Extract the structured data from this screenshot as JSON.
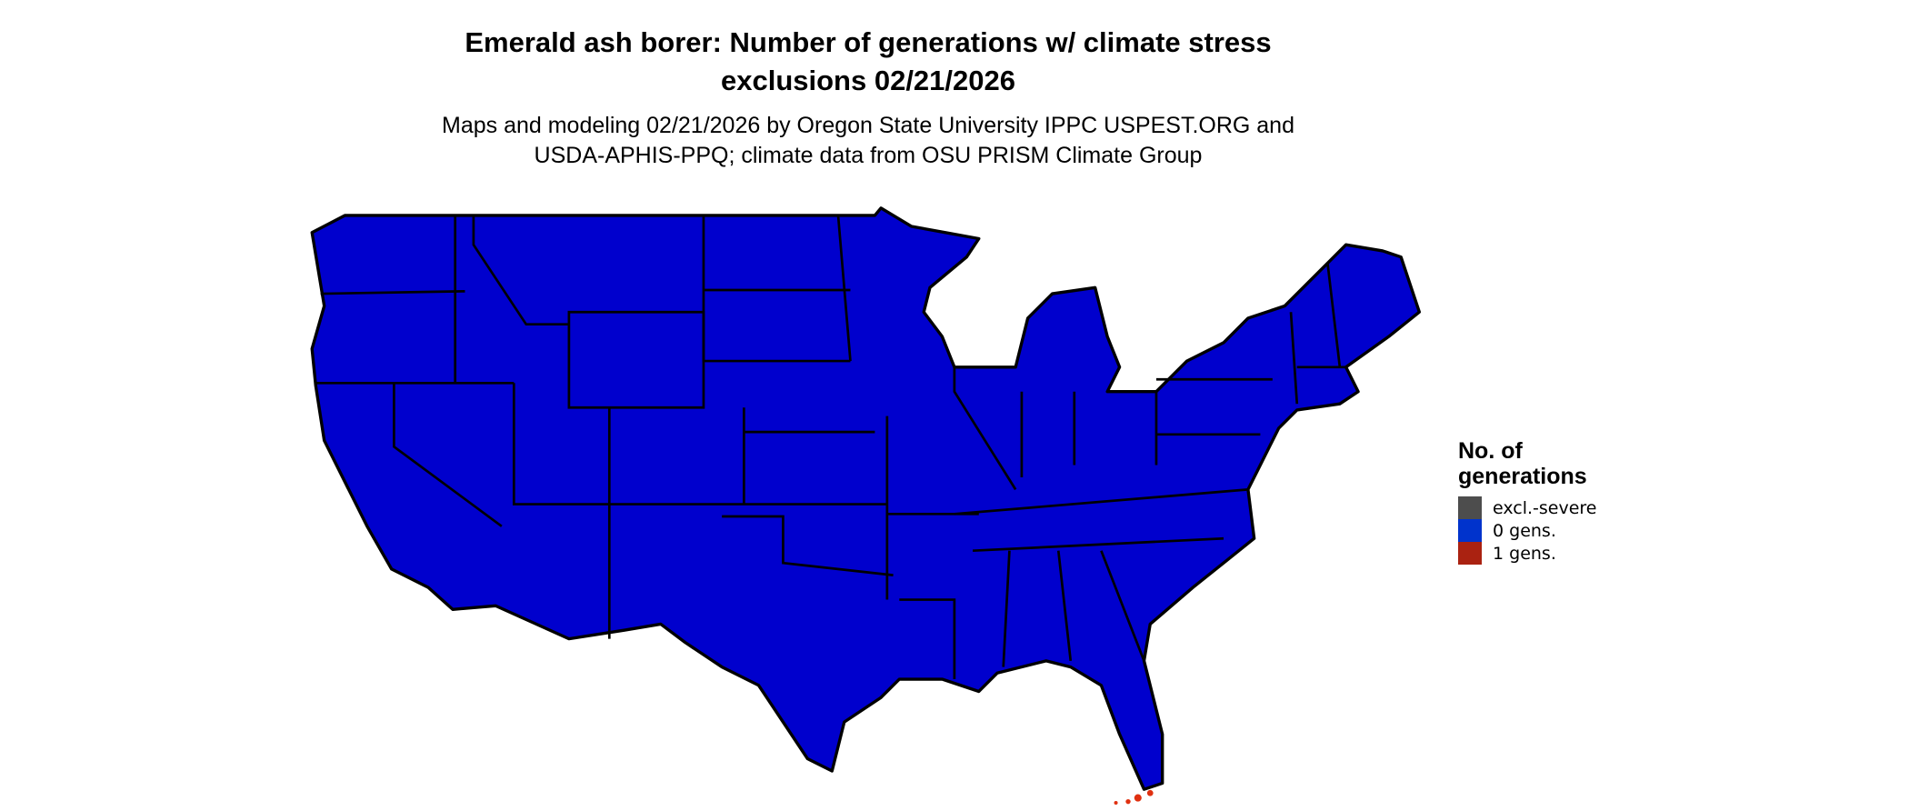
{
  "title_line1": "Emerald ash borer: Number of generations w/ climate stress",
  "title_line2": "exclusions 02/21/2026",
  "subtitle_line1": "Maps and modeling 02/21/2026 by Oregon State University IPPC USPEST.ORG and",
  "subtitle_line2": "USDA-APHIS-PPQ; climate data from OSU PRISM Climate Group",
  "map": {
    "region": "Contiguous United States",
    "fill_color": "#0000CD",
    "border_color": "#000000",
    "hotspot_color": "#E03010"
  },
  "legend": {
    "title_line1": "No. of",
    "title_line2": "generations",
    "items": [
      {
        "label": "excl.-severe",
        "color": "#4D4D4D"
      },
      {
        "label": "0 gens.",
        "color": "#0033CC"
      },
      {
        "label": "1 gens.",
        "color": "#AA2211"
      }
    ]
  }
}
